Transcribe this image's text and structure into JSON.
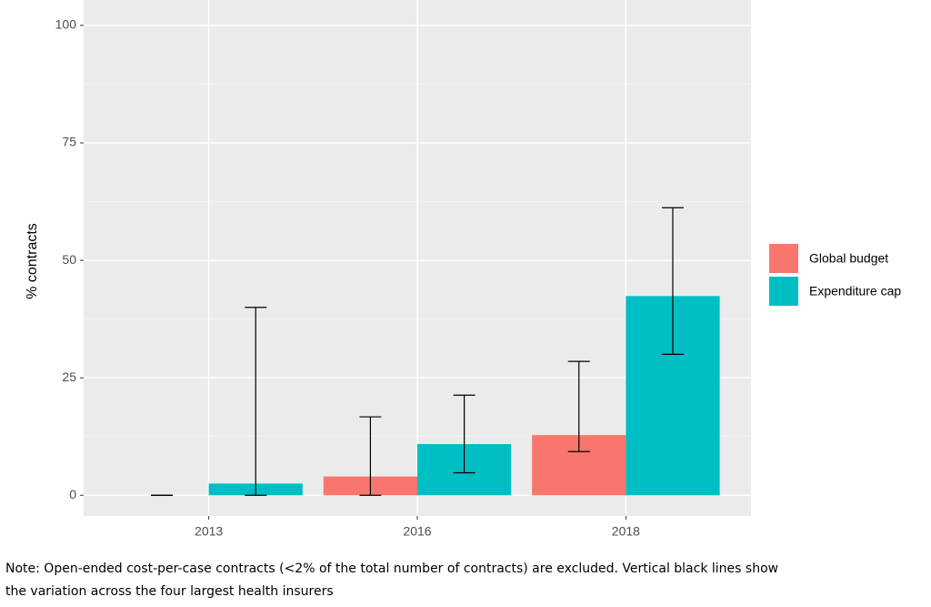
{
  "chart_data": {
    "type": "bar",
    "y_label": "% contracts",
    "categories": [
      "2013",
      "2016",
      "2018"
    ],
    "series": [
      {
        "name": "Global budget",
        "color": "#f8766d",
        "values": [
          0,
          4,
          12.8
        ],
        "lower": [
          0,
          0,
          9.3
        ],
        "upper": [
          0,
          16.7,
          28.5
        ]
      },
      {
        "name": "Expenditure cap",
        "color": "#00bfc4",
        "values": [
          2.5,
          10.9,
          42.4
        ],
        "lower": [
          0,
          4.8,
          30
        ],
        "upper": [
          40,
          21.3,
          61.2
        ]
      }
    ],
    "ylim": [
      -4.4,
      105.4
    ],
    "yticks": [
      0,
      25,
      50,
      75,
      100
    ],
    "grid": true,
    "legend": "right",
    "note": [
      "Note: Open-ended cost-per-case contracts (<2% of the total number of contracts) are excluded. Vertical black lines show",
      "the variation across the four largest health insurers"
    ]
  }
}
